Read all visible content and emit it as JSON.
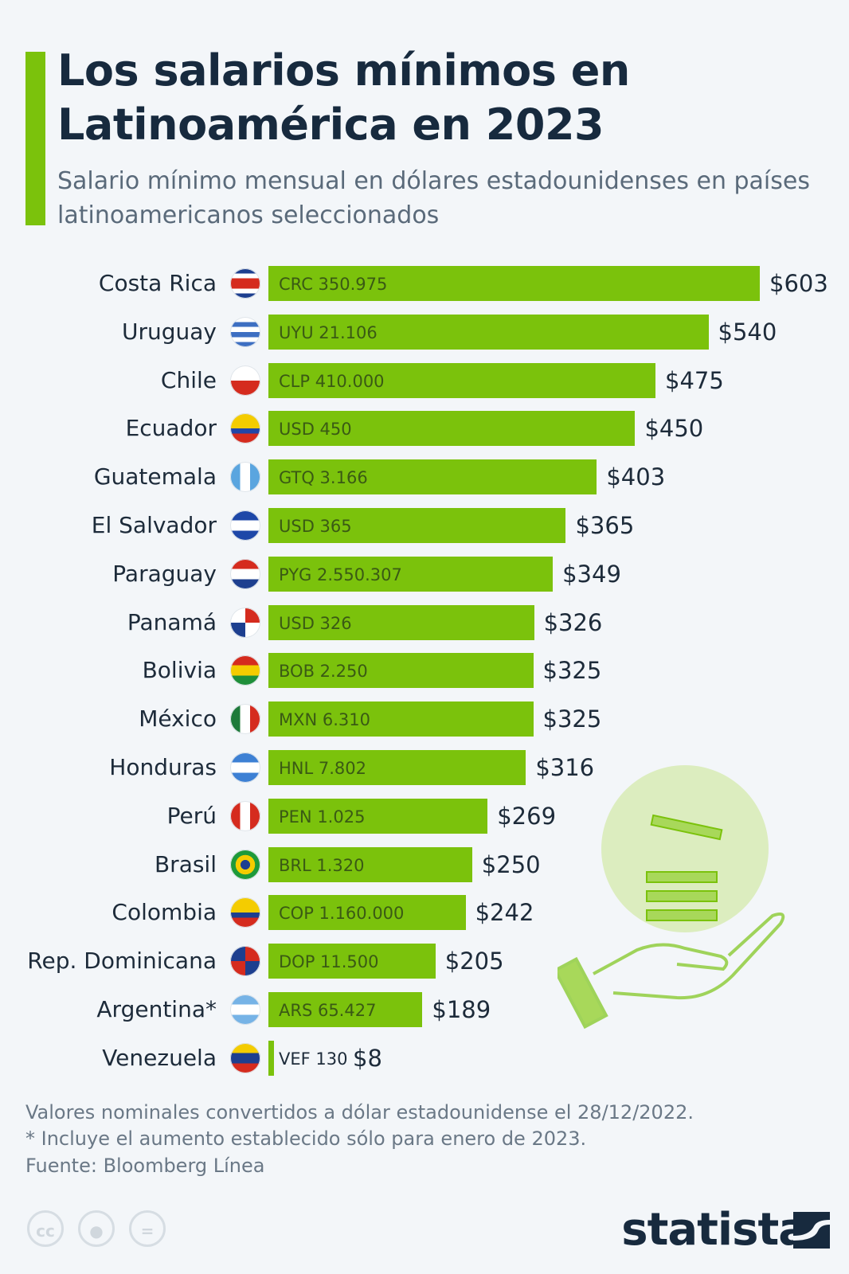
{
  "header": {
    "title": "Los salarios mínimos en Latinoamérica en 2023",
    "subtitle": "Salario mínimo mensual en dólares estadounidenses en países latinoamericanos seleccionados"
  },
  "chart_data": {
    "type": "bar",
    "orientation": "horizontal",
    "title": "Los salarios mínimos en Latinoamérica en 2023",
    "subtitle": "Salario mínimo mensual en dólares estadounidenses en países latinoamericanos seleccionados",
    "bar_color": "#7bc20c",
    "grid": false,
    "categories": [
      "Costa Rica",
      "Uruguay",
      "Chile",
      "Ecuador",
      "Guatemala",
      "El Salvador",
      "Paraguay",
      "Panamá",
      "Bolivia",
      "México",
      "Honduras",
      "Perú",
      "Brasil",
      "Colombia",
      "Rep. Dominicana",
      "Argentina*",
      "Venezuela"
    ],
    "values": [
      603,
      540,
      475,
      450,
      403,
      365,
      349,
      326,
      325,
      325,
      316,
      269,
      250,
      242,
      205,
      189,
      8
    ],
    "value_labels": [
      "$603",
      "$540",
      "$475",
      "$450",
      "$403",
      "$365",
      "$349",
      "$326",
      "$325",
      "$325",
      "$316",
      "$269",
      "$250",
      "$242",
      "$205",
      "$189",
      "$8"
    ],
    "local_labels": [
      "CRC 350.975",
      "UYU 21.106",
      "CLP 410.000",
      "USD 450",
      "GTQ 3.166",
      "USD 365",
      "PYG 2.550.307",
      "USD 326",
      "BOB 2.250",
      "MXN 6.310",
      "HNL 7.802",
      "PEN 1.025",
      "BRL 1.320",
      "COP 1.160.000",
      "DOP 11.500",
      "ARS 65.427",
      "VEF 130"
    ],
    "flags": [
      "flag-costa-rica",
      "flag-uruguay",
      "flag-chile",
      "flag-ecuador",
      "flag-guatemala",
      "flag-el-salvador",
      "flag-paraguay",
      "flag-panama",
      "flag-bolivia",
      "flag-mexico",
      "flag-honduras",
      "flag-peru",
      "flag-brazil",
      "flag-colombia",
      "flag-dominican-republic",
      "flag-argentina",
      "flag-venezuela"
    ]
  },
  "footer": {
    "note1": "Valores nominales convertidos a dólar estadounidense el 28/12/2022.",
    "note2": "* Incluye el aumento establecido sólo para enero de 2023.",
    "source": "Fuente: Bloomberg Línea",
    "license_icons": [
      "cc-icon",
      "attribution-icon",
      "no-derivatives-icon"
    ],
    "cc_text": "cc",
    "logo": "statista"
  }
}
